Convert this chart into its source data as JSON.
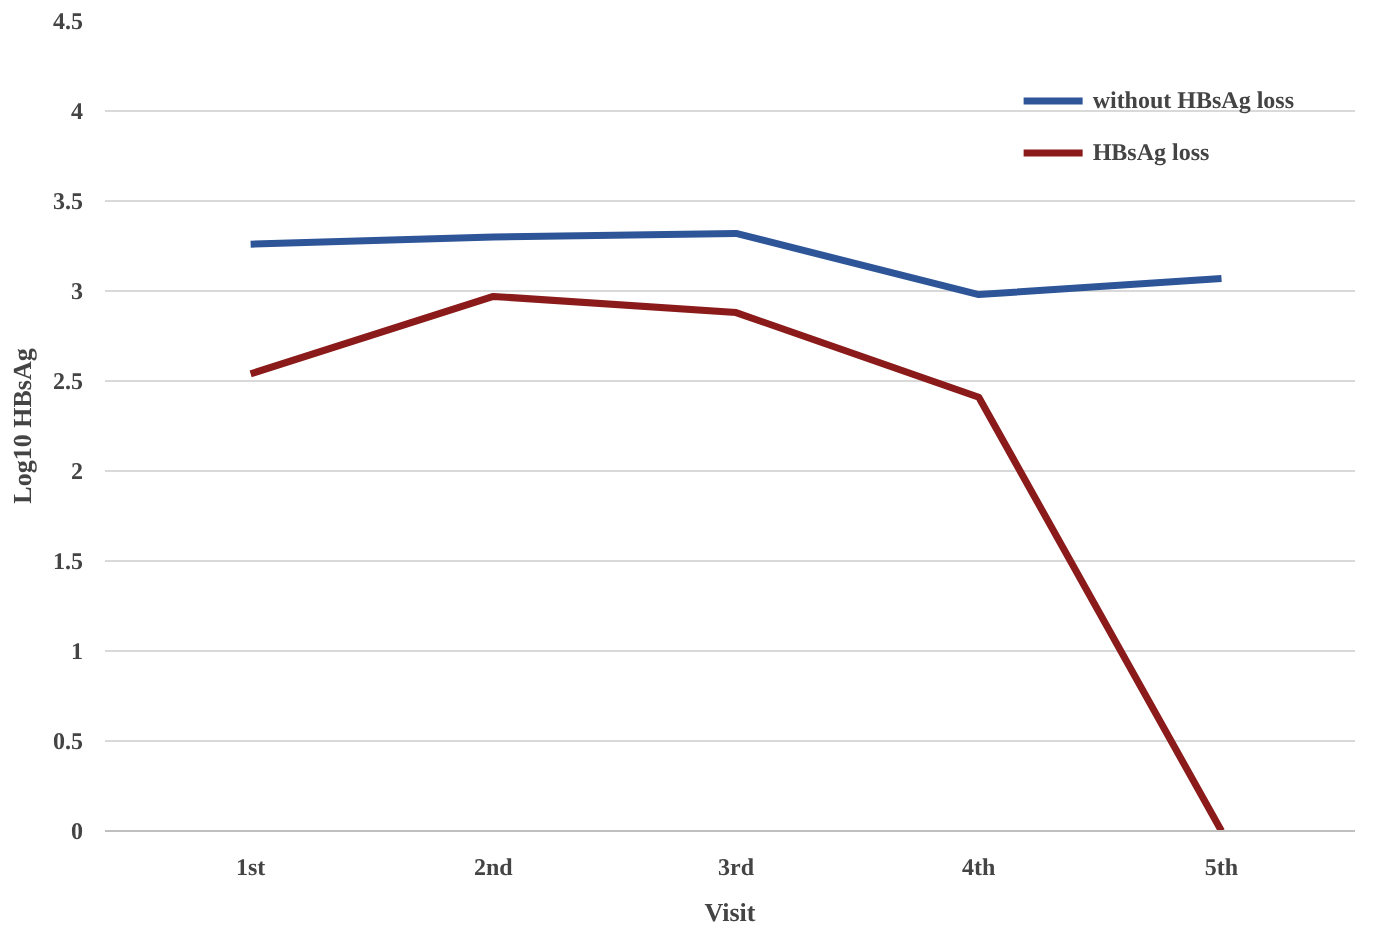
{
  "chart_data": {
    "type": "line",
    "xlabel": "Visit",
    "ylabel": "Log10 HBsAg",
    "categories": [
      "1st",
      "2nd",
      "3rd",
      "4th",
      "5th"
    ],
    "series": [
      {
        "name": "without HBsAg loss",
        "color": "#2e5597",
        "values": [
          3.26,
          3.3,
          3.32,
          2.98,
          3.07
        ]
      },
      {
        "name": "HBsAg loss",
        "color": "#8b1a1a",
        "values": [
          2.54,
          2.97,
          2.88,
          2.41,
          0
        ]
      }
    ],
    "ylim": [
      0,
      4.5
    ],
    "yticks": [
      0,
      0.5,
      1,
      1.5,
      2,
      2.5,
      3,
      3.5,
      4,
      4.5
    ],
    "grid": "y",
    "legend": "top right",
    "marker": "none",
    "line_style": "solid"
  }
}
